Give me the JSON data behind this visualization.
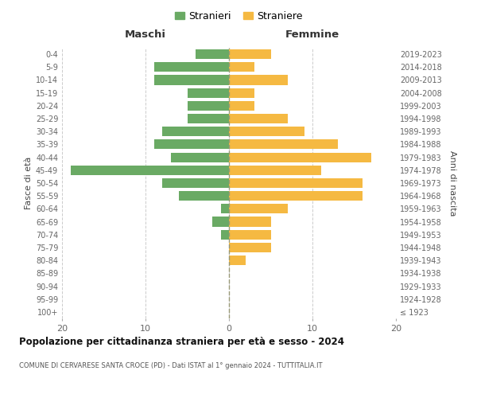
{
  "age_groups": [
    "100+",
    "95-99",
    "90-94",
    "85-89",
    "80-84",
    "75-79",
    "70-74",
    "65-69",
    "60-64",
    "55-59",
    "50-54",
    "45-49",
    "40-44",
    "35-39",
    "30-34",
    "25-29",
    "20-24",
    "15-19",
    "10-14",
    "5-9",
    "0-4"
  ],
  "birth_years": [
    "≤ 1923",
    "1924-1928",
    "1929-1933",
    "1934-1938",
    "1939-1943",
    "1944-1948",
    "1949-1953",
    "1954-1958",
    "1959-1963",
    "1964-1968",
    "1969-1973",
    "1974-1978",
    "1979-1983",
    "1984-1988",
    "1989-1993",
    "1994-1998",
    "1999-2003",
    "2004-2008",
    "2009-2013",
    "2014-2018",
    "2019-2023"
  ],
  "maschi": [
    0,
    0,
    0,
    0,
    0,
    0,
    1,
    2,
    1,
    6,
    8,
    19,
    7,
    9,
    8,
    5,
    5,
    5,
    9,
    9,
    4
  ],
  "femmine": [
    0,
    0,
    0,
    0,
    2,
    5,
    5,
    5,
    7,
    16,
    16,
    11,
    17,
    13,
    9,
    7,
    3,
    3,
    7,
    3,
    5
  ],
  "color_maschi": "#6aaa64",
  "color_femmine": "#f5b942",
  "title": "Popolazione per cittadinanza straniera per età e sesso - 2024",
  "subtitle": "COMUNE DI CERVARESE SANTA CROCE (PD) - Dati ISTAT al 1° gennaio 2024 - TUTTITALIA.IT",
  "xlabel_left": "Maschi",
  "xlabel_right": "Femmine",
  "ylabel_left": "Fasce di età",
  "ylabel_right": "Anni di nascita",
  "legend_maschi": "Stranieri",
  "legend_femmine": "Straniere",
  "xlim": 20,
  "bg_color": "#ffffff",
  "grid_color": "#cccccc",
  "bar_height": 0.75
}
